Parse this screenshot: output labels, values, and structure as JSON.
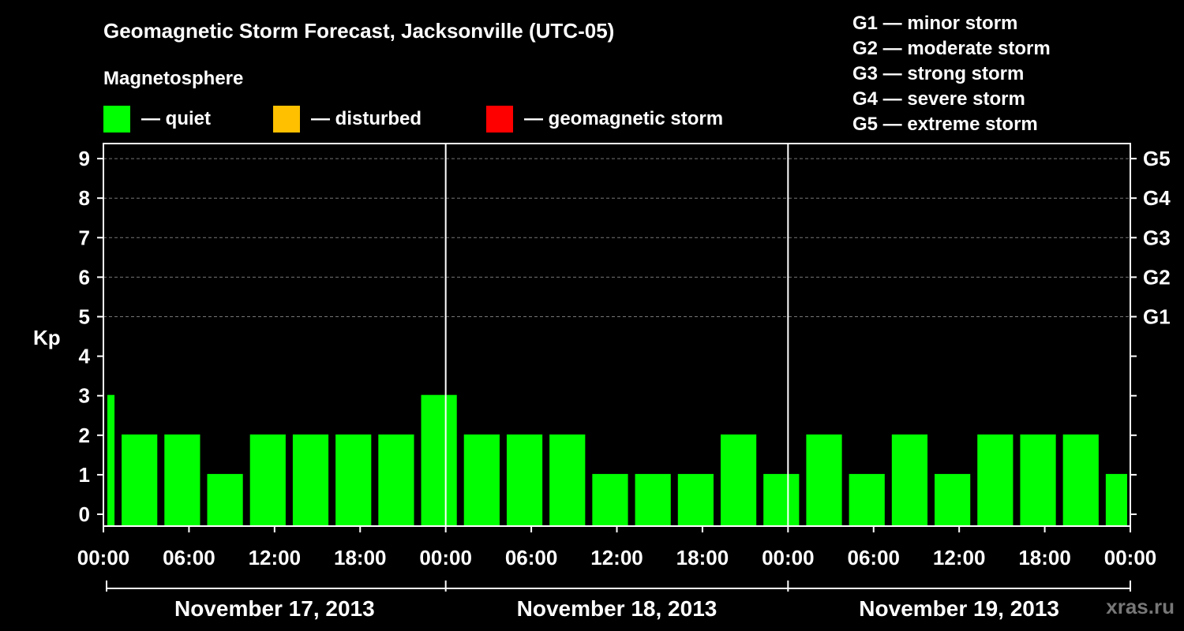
{
  "header": {
    "title": "Geomagnetic Storm Forecast, Jacksonville (UTC-05)",
    "subtitle": "Magnetosphere"
  },
  "legend": [
    {
      "label": "— quiet",
      "color": "#00ff00"
    },
    {
      "label": "— disturbed",
      "color": "#ffc000"
    },
    {
      "label": "— geomagnetic storm",
      "color": "#ff0000"
    }
  ],
  "storm_scale": [
    "G1 — minor storm",
    "G2 — moderate storm",
    "G3 — strong storm",
    "G4 — severe storm",
    "G5 — extreme storm"
  ],
  "watermark": "xras.ru",
  "chart_data": {
    "type": "bar",
    "ylabel": "Kp",
    "ylim": [
      0,
      9
    ],
    "yticks": [
      0,
      1,
      2,
      3,
      4,
      5,
      6,
      7,
      8,
      9
    ],
    "right_axis_labels": [
      {
        "kp": 5,
        "label": "G1"
      },
      {
        "kp": 6,
        "label": "G2"
      },
      {
        "kp": 7,
        "label": "G3"
      },
      {
        "kp": 8,
        "label": "G4"
      },
      {
        "kp": 9,
        "label": "G5"
      }
    ],
    "grid": "dashed horizontal at Kp 5-9",
    "x_tick_labels": [
      "00:00",
      "06:00",
      "12:00",
      "18:00",
      "00:00",
      "06:00",
      "12:00",
      "18:00",
      "00:00",
      "06:00",
      "12:00",
      "18:00",
      "00:00"
    ],
    "days": [
      "November 17, 2013",
      "November 18, 2013",
      "November 19, 2013"
    ],
    "bar_color": "#00ff00",
    "bars": [
      {
        "start_hour": 0,
        "end_hour": 1,
        "kp": 3
      },
      {
        "start_hour": 1,
        "end_hour": 4,
        "kp": 2
      },
      {
        "start_hour": 4,
        "end_hour": 7,
        "kp": 2
      },
      {
        "start_hour": 7,
        "end_hour": 10,
        "kp": 1
      },
      {
        "start_hour": 10,
        "end_hour": 13,
        "kp": 2
      },
      {
        "start_hour": 13,
        "end_hour": 16,
        "kp": 2
      },
      {
        "start_hour": 16,
        "end_hour": 19,
        "kp": 2
      },
      {
        "start_hour": 19,
        "end_hour": 22,
        "kp": 2
      },
      {
        "start_hour": 22,
        "end_hour": 25,
        "kp": 3
      },
      {
        "start_hour": 25,
        "end_hour": 28,
        "kp": 2
      },
      {
        "start_hour": 28,
        "end_hour": 31,
        "kp": 2
      },
      {
        "start_hour": 31,
        "end_hour": 34,
        "kp": 2
      },
      {
        "start_hour": 34,
        "end_hour": 37,
        "kp": 1
      },
      {
        "start_hour": 37,
        "end_hour": 40,
        "kp": 1
      },
      {
        "start_hour": 40,
        "end_hour": 43,
        "kp": 1
      },
      {
        "start_hour": 43,
        "end_hour": 46,
        "kp": 2
      },
      {
        "start_hour": 46,
        "end_hour": 49,
        "kp": 1
      },
      {
        "start_hour": 49,
        "end_hour": 52,
        "kp": 2
      },
      {
        "start_hour": 52,
        "end_hour": 55,
        "kp": 1
      },
      {
        "start_hour": 55,
        "end_hour": 58,
        "kp": 2
      },
      {
        "start_hour": 58,
        "end_hour": 61,
        "kp": 1
      },
      {
        "start_hour": 61,
        "end_hour": 64,
        "kp": 2
      },
      {
        "start_hour": 64,
        "end_hour": 67,
        "kp": 2
      },
      {
        "start_hour": 67,
        "end_hour": 70,
        "kp": 2
      },
      {
        "start_hour": 70,
        "end_hour": 72,
        "kp": 1
      }
    ]
  }
}
